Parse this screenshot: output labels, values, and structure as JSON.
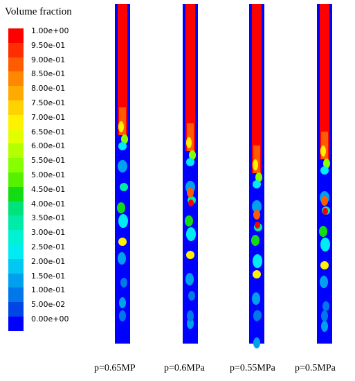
{
  "legend": {
    "title": "Volume fraction",
    "levels": [
      {
        "label": "1.00e+00",
        "color": "#ff0000"
      },
      {
        "label": "9.50e-01",
        "color": "#ff2e00"
      },
      {
        "label": "9.00e-01",
        "color": "#ff5b00"
      },
      {
        "label": "8.50e-01",
        "color": "#ff8800"
      },
      {
        "label": "8.00e-01",
        "color": "#ffaa00"
      },
      {
        "label": "7.50e-01",
        "color": "#ffd200"
      },
      {
        "label": "7.00e-01",
        "color": "#fff200"
      },
      {
        "label": "6.50e-01",
        "color": "#e2ff00"
      },
      {
        "label": "6.00e-01",
        "color": "#b4ff00"
      },
      {
        "label": "5.50e-01",
        "color": "#86ff00"
      },
      {
        "label": "5.00e-01",
        "color": "#55f200"
      },
      {
        "label": "4.50e-01",
        "color": "#14dc14"
      },
      {
        "label": "4.00e-01",
        "color": "#00e27a"
      },
      {
        "label": "3.50e-01",
        "color": "#00eba8"
      },
      {
        "label": "3.00e-01",
        "color": "#00f2d2"
      },
      {
        "label": "2.50e-01",
        "color": "#00ecf2"
      },
      {
        "label": "2.00e-01",
        "color": "#00c8f2"
      },
      {
        "label": "1.50e-01",
        "color": "#00a0ee"
      },
      {
        "label": "1.00e-01",
        "color": "#0078ea"
      },
      {
        "label": "5.00e-02",
        "color": "#0046e6"
      },
      {
        "label": "0.00e+00",
        "color": "#0000ff"
      }
    ]
  },
  "tubes": [
    {
      "caption": "p=0.65MP"
    },
    {
      "caption": "p=0.6MPa"
    },
    {
      "caption": "p=0.55MPa"
    },
    {
      "caption": "p=0.5MPa"
    }
  ]
}
